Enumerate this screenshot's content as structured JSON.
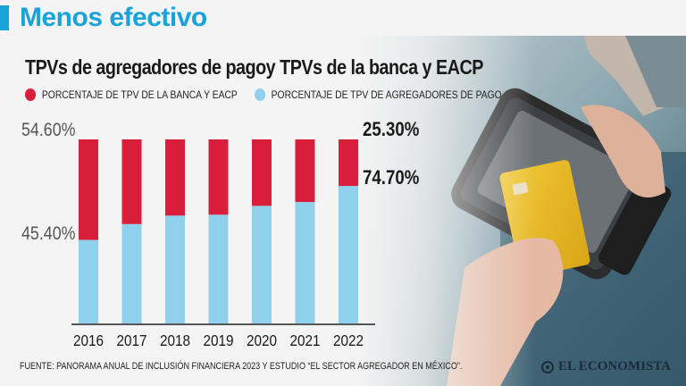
{
  "header": {
    "title": "Menos efectivo"
  },
  "footer": {
    "source": "FUENTE: PANORAMA ANUAL DE INCLUSIÓN FINANCIERA 2023 Y ESTUDIO “EL SECTOR AGREGADOR EN MÉXICO”.",
    "brand": "EL ECONOMISTA"
  },
  "colors": {
    "banca": "#d81e3a",
    "agregadores": "#8fd0ec",
    "accent": "#1aa3d9"
  },
  "chart_data": {
    "type": "bar",
    "stacked": true,
    "title": "TPVs de agregadores de pagoy TPVs de la banca y EACP",
    "categories": [
      "2016",
      "2017",
      "2018",
      "2019",
      "2020",
      "2021",
      "2022"
    ],
    "series": [
      {
        "name": "PORCENTAJE DE TPV DE AGREGADORES DE PAGO",
        "values": [
          45.4,
          54.0,
          58.6,
          59.1,
          63.9,
          66.0,
          74.7
        ]
      },
      {
        "name": "PORCENTAJE DE TPV DE LA BANCA Y EACP",
        "values": [
          54.6,
          46.0,
          41.4,
          40.9,
          36.1,
          34.0,
          25.3
        ]
      }
    ],
    "ylim": [
      0,
      100
    ],
    "y_labels": [
      "54.60%",
      "45.40%"
    ],
    "callouts": [
      "25.30%",
      "74.70%"
    ],
    "legend_position": "top"
  }
}
